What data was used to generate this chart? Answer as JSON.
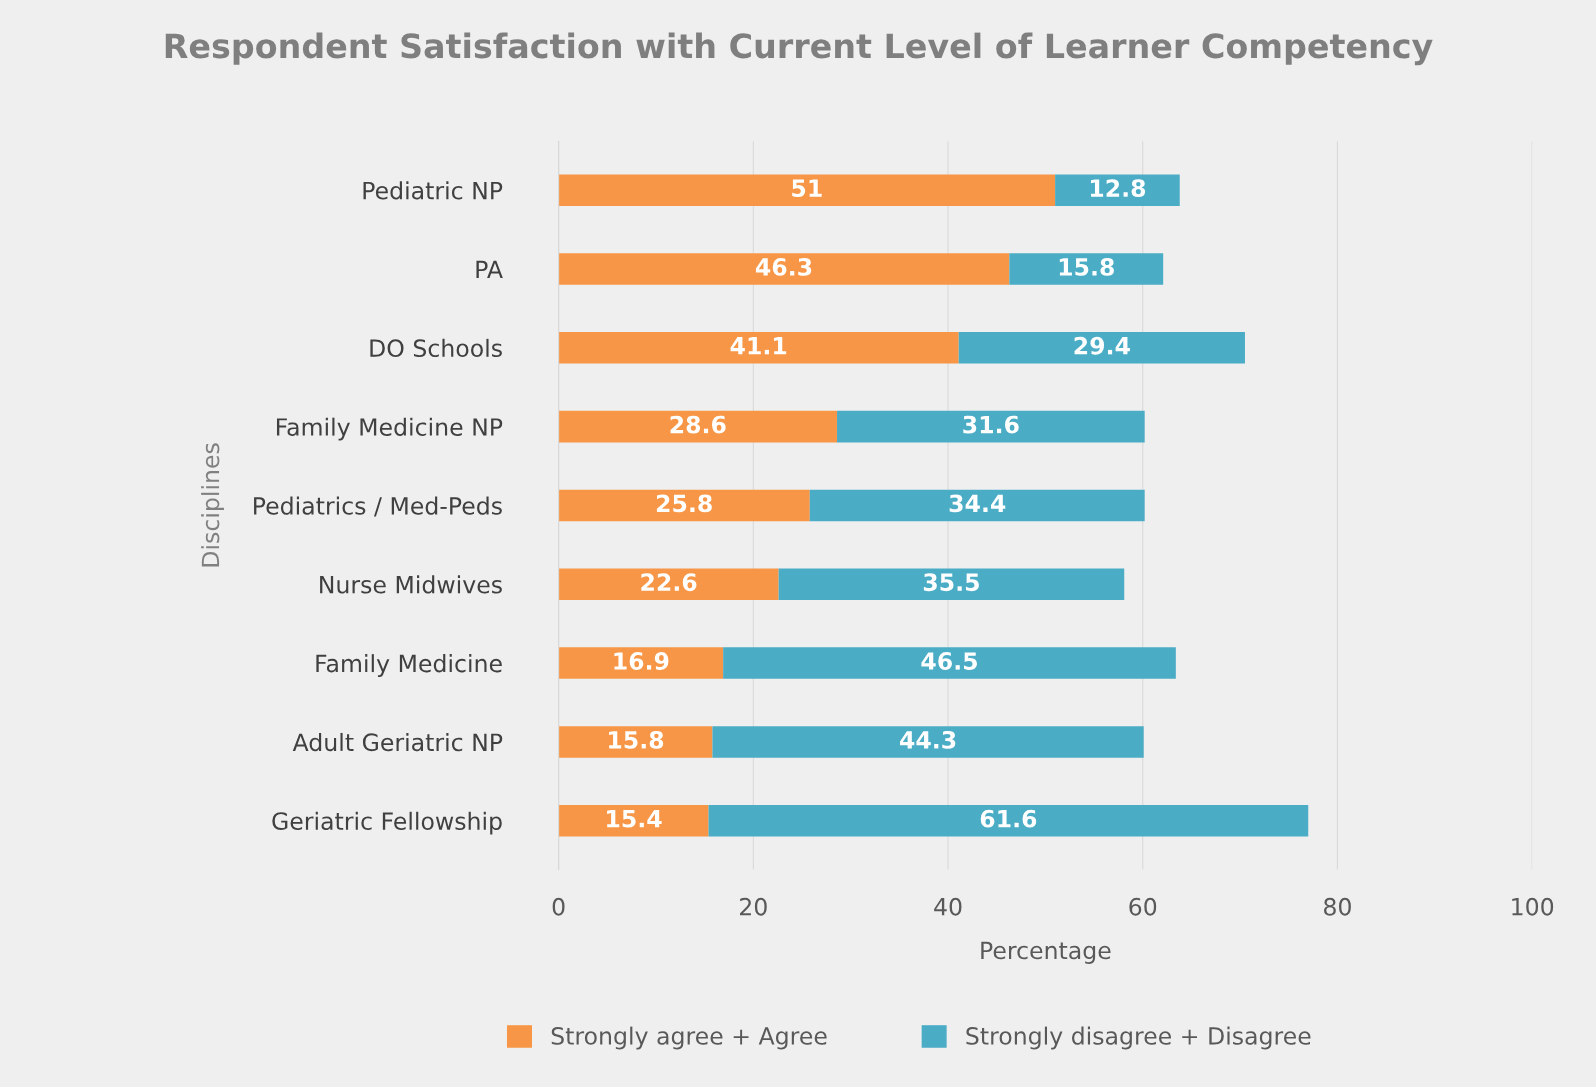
{
  "chart_data": {
    "type": "bar",
    "orientation": "horizontal",
    "stacked": true,
    "title": "Respondent Satisfaction with Current Level of Learner Competency",
    "xlabel": "Percentage",
    "ylabel": "Disciplines",
    "categories": [
      "Pediatric NP",
      "PA",
      "DO Schools",
      "Family Medicine NP",
      "Pediatrics / Med-Peds",
      "Nurse Midwives",
      "Family Medicine",
      "Adult Geriatric NP",
      "Geriatric Fellowship"
    ],
    "series": [
      {
        "name": "Strongly agree + Agree",
        "color": "#f79646",
        "values": [
          51,
          46.3,
          41.1,
          28.6,
          25.8,
          22.6,
          16.9,
          15.8,
          15.4
        ]
      },
      {
        "name": "Strongly disagree + Disagree",
        "color": "#4bacc6",
        "values": [
          12.8,
          15.8,
          29.4,
          31.6,
          34.4,
          35.5,
          46.5,
          44.3,
          61.6
        ]
      }
    ],
    "xlim": [
      0,
      100
    ],
    "xticks": [
      0,
      20,
      40,
      60,
      80,
      100
    ],
    "grid": "x",
    "legend": "bottom",
    "data_labels": true
  }
}
